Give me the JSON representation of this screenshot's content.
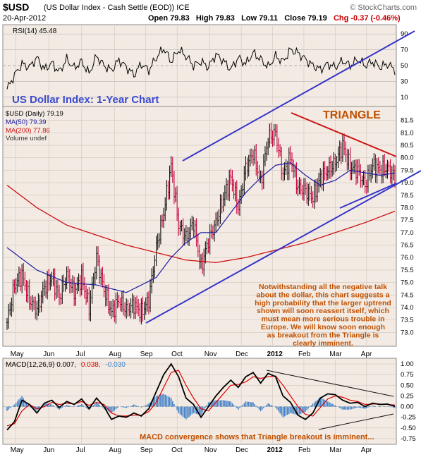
{
  "header": {
    "symbol": "$USD",
    "name": "(US Dollar Index - Cash Settle (EOD))  ICE",
    "date": "20-Apr-2012",
    "watermark": "© StockCharts.com",
    "open": "Open 79.83",
    "high": "High 79.83",
    "low": "Low 79.11",
    "close": "Close 79.19",
    "chg": "Chg -0.37 (-0.46%)"
  },
  "colors": {
    "bg": "#f3ebe3",
    "trend": "#3535c8",
    "resistance": "#cc1111",
    "up_bar": "#111111",
    "down_bar": "#c8003c",
    "ma50": "#1a1aa0",
    "ma200": "#cc1111",
    "annotation": "#c05000",
    "title": "#3a4ad0",
    "macd": "#000000",
    "signal": "#dd0000",
    "histogram": "#3e7fc7"
  },
  "chart_data": [
    {
      "type": "line",
      "panel": "RSI",
      "label": "RSI(14) 45.48",
      "ylim": [
        0,
        100
      ],
      "ticks": [
        "90",
        "70",
        "50",
        "30",
        "10"
      ],
      "tick_values": [
        90,
        70,
        50,
        30,
        10
      ],
      "x_index": [
        0,
        5,
        10,
        15,
        20,
        25,
        30,
        35,
        40,
        45,
        50,
        55,
        60,
        65,
        70,
        75,
        80,
        85,
        90,
        95,
        100,
        105,
        110,
        115,
        120,
        125,
        130,
        135,
        140,
        145,
        150,
        155,
        160,
        165,
        170,
        175,
        180,
        185,
        190,
        195,
        200,
        205,
        210,
        215,
        220,
        225,
        230,
        235,
        240,
        245,
        250,
        255,
        260
      ],
      "values": [
        20,
        38,
        52,
        48,
        60,
        45,
        53,
        42,
        58,
        47,
        55,
        40,
        62,
        50,
        44,
        57,
        48,
        38,
        52,
        44,
        60,
        72,
        55,
        70,
        62,
        50,
        55,
        48,
        64,
        56,
        45,
        60,
        52,
        66,
        58,
        48,
        62,
        55,
        70,
        66,
        58,
        50,
        45,
        52,
        48,
        56,
        50,
        58,
        50,
        55,
        48,
        52,
        45
      ]
    },
    {
      "type": "line",
      "panel": "price",
      "title": "US Dollar Index: 1-Year Chart",
      "legend": [
        "$USD (Daily) 79.19",
        "MA(50) 79.39",
        "MA(200) 77.86",
        "Volume undef"
      ],
      "ylim": [
        72.5,
        82.0
      ],
      "ticks": [
        "81.5",
        "81.0",
        "80.5",
        "80.0",
        "79.5",
        "79.0",
        "78.5",
        "78.0",
        "77.5",
        "77.0",
        "76.5",
        "76.0",
        "75.5",
        "75.0",
        "74.5",
        "74.0",
        "73.5",
        "73.0"
      ],
      "tick_values": [
        81.5,
        81.0,
        80.5,
        80.0,
        79.5,
        79.0,
        78.5,
        78.0,
        77.5,
        77.0,
        76.5,
        76.0,
        75.5,
        75.0,
        74.5,
        74.0,
        73.5,
        73.0
      ],
      "x_labels": [
        "May",
        "Jun",
        "Jul",
        "Aug",
        "Sep",
        "Oct",
        "Nov",
        "Dec",
        "2012",
        "Feb",
        "Mar",
        "Apr"
      ],
      "x_label_index": [
        6,
        28,
        50,
        72,
        93,
        114,
        136,
        157,
        178,
        199,
        220,
        241
      ],
      "close_x": [
        0,
        5,
        10,
        15,
        20,
        25,
        30,
        35,
        40,
        45,
        50,
        55,
        60,
        65,
        70,
        75,
        80,
        85,
        90,
        95,
        100,
        105,
        110,
        115,
        120,
        125,
        130,
        135,
        140,
        145,
        150,
        155,
        160,
        165,
        170,
        175,
        180,
        185,
        190,
        195,
        200,
        205,
        210,
        215,
        220,
        225,
        230,
        235,
        240,
        245,
        250,
        255,
        260
      ],
      "close": [
        73.4,
        74.9,
        75.3,
        74.3,
        73.9,
        74.8,
        75.2,
        74.4,
        75.3,
        74.6,
        75.2,
        74.0,
        76.0,
        74.7,
        73.8,
        74.3,
        73.9,
        74.1,
        73.8,
        74.3,
        76.4,
        77.8,
        79.7,
        77.3,
        76.8,
        77.4,
        75.6,
        76.7,
        77.4,
        78.4,
        79.2,
        78.0,
        79.6,
        80.2,
        79.0,
        80.8,
        81.0,
        79.3,
        80.0,
        78.8,
        78.7,
        78.4,
        79.2,
        79.5,
        79.8,
        80.5,
        79.6,
        79.5,
        78.9,
        79.7,
        79.5,
        79.6,
        79.19
      ],
      "ma50_x": [
        0,
        20,
        40,
        60,
        80,
        100,
        110,
        120,
        130,
        140,
        150,
        160,
        170,
        180,
        190,
        200,
        210,
        220,
        230,
        240,
        250,
        260
      ],
      "ma50": [
        76.4,
        75.5,
        75.0,
        74.9,
        74.6,
        75.2,
        76.0,
        76.6,
        77.0,
        77.0,
        77.8,
        78.6,
        79.2,
        79.7,
        79.8,
        79.3,
        78.9,
        79.1,
        79.5,
        79.4,
        79.3,
        79.39
      ],
      "ma200_x": [
        0,
        20,
        40,
        60,
        80,
        100,
        120,
        140,
        160,
        180,
        200,
        220,
        240,
        260
      ],
      "ma200": [
        78.9,
        78.0,
        77.3,
        76.9,
        76.5,
        76.2,
        75.9,
        75.8,
        76.0,
        76.3,
        76.6,
        77.0,
        77.4,
        77.86
      ],
      "annotations": [
        {
          "id": "triangle",
          "text": "TRIANGLE"
        },
        {
          "id": "note",
          "lines": [
            "Notwithstanding all the negative talk",
            "about the dollar, this chart suggests a",
            "high probability that the larger uptrend",
            "shown will soon reassert itself, which",
            "must mean more serious trouble in",
            "Europe. We will know soon enough",
            "as breakout from the Triangle is",
            "clearly imminent."
          ]
        }
      ]
    },
    {
      "type": "bar",
      "panel": "MACD",
      "label_main": "MACD(12,26,9) 0.007,",
      "label_signal": "0.038,",
      "label_hist": "-0.030",
      "ylim": [
        -0.85,
        1.1
      ],
      "ticks": [
        "1.00",
        "0.75",
        "0.50",
        "0.25",
        "0.00",
        "-0.25",
        "-0.50",
        "-0.75"
      ],
      "tick_values": [
        1.0,
        0.75,
        0.5,
        0.25,
        0.0,
        -0.25,
        -0.5,
        -0.75
      ],
      "x_labels": [
        "May",
        "Jun",
        "Jul",
        "Aug",
        "Sep",
        "Oct",
        "Nov",
        "Dec",
        "2012",
        "Feb",
        "Mar",
        "Apr"
      ],
      "x_label_index": [
        6,
        28,
        50,
        72,
        93,
        114,
        136,
        157,
        178,
        199,
        220,
        241
      ],
      "x": [
        0,
        5,
        10,
        15,
        20,
        25,
        30,
        35,
        40,
        45,
        50,
        55,
        60,
        65,
        70,
        75,
        80,
        85,
        90,
        95,
        100,
        105,
        110,
        115,
        120,
        125,
        130,
        135,
        140,
        145,
        150,
        155,
        160,
        165,
        170,
        175,
        180,
        185,
        190,
        195,
        200,
        205,
        210,
        215,
        220,
        225,
        230,
        235,
        240,
        245,
        250,
        255,
        260
      ],
      "macd": [
        -0.55,
        -0.35,
        0.15,
        0.05,
        -0.15,
        0.08,
        0.15,
        -0.02,
        0.12,
        0.05,
        0.18,
        -0.05,
        0.2,
        0.0,
        -0.3,
        -0.22,
        -0.25,
        -0.15,
        -0.22,
        -0.05,
        0.35,
        0.75,
        1.0,
        0.7,
        0.2,
        0.05,
        -0.25,
        0.0,
        0.25,
        0.45,
        0.62,
        0.45,
        0.7,
        0.8,
        0.55,
        0.78,
        0.7,
        0.25,
        0.1,
        -0.2,
        -0.3,
        -0.15,
        0.2,
        0.3,
        0.28,
        0.15,
        0.08,
        0.1,
        0.0,
        0.08,
        0.05,
        0.06,
        0.007
      ],
      "signal": [
        -0.45,
        -0.4,
        -0.1,
        0.05,
        -0.05,
        0.0,
        0.1,
        0.05,
        0.08,
        0.06,
        0.12,
        0.03,
        0.1,
        0.05,
        -0.15,
        -0.22,
        -0.22,
        -0.2,
        -0.2,
        -0.12,
        0.1,
        0.45,
        0.8,
        0.85,
        0.5,
        0.2,
        -0.05,
        -0.1,
        0.1,
        0.3,
        0.5,
        0.52,
        0.58,
        0.7,
        0.66,
        0.7,
        0.72,
        0.5,
        0.25,
        0.0,
        -0.18,
        -0.22,
        -0.02,
        0.18,
        0.25,
        0.22,
        0.15,
        0.12,
        0.05,
        0.06,
        0.06,
        0.05,
        0.038
      ]
    }
  ],
  "macd_note": "MACD convergence shows that Triangle breakout is imminent..."
}
